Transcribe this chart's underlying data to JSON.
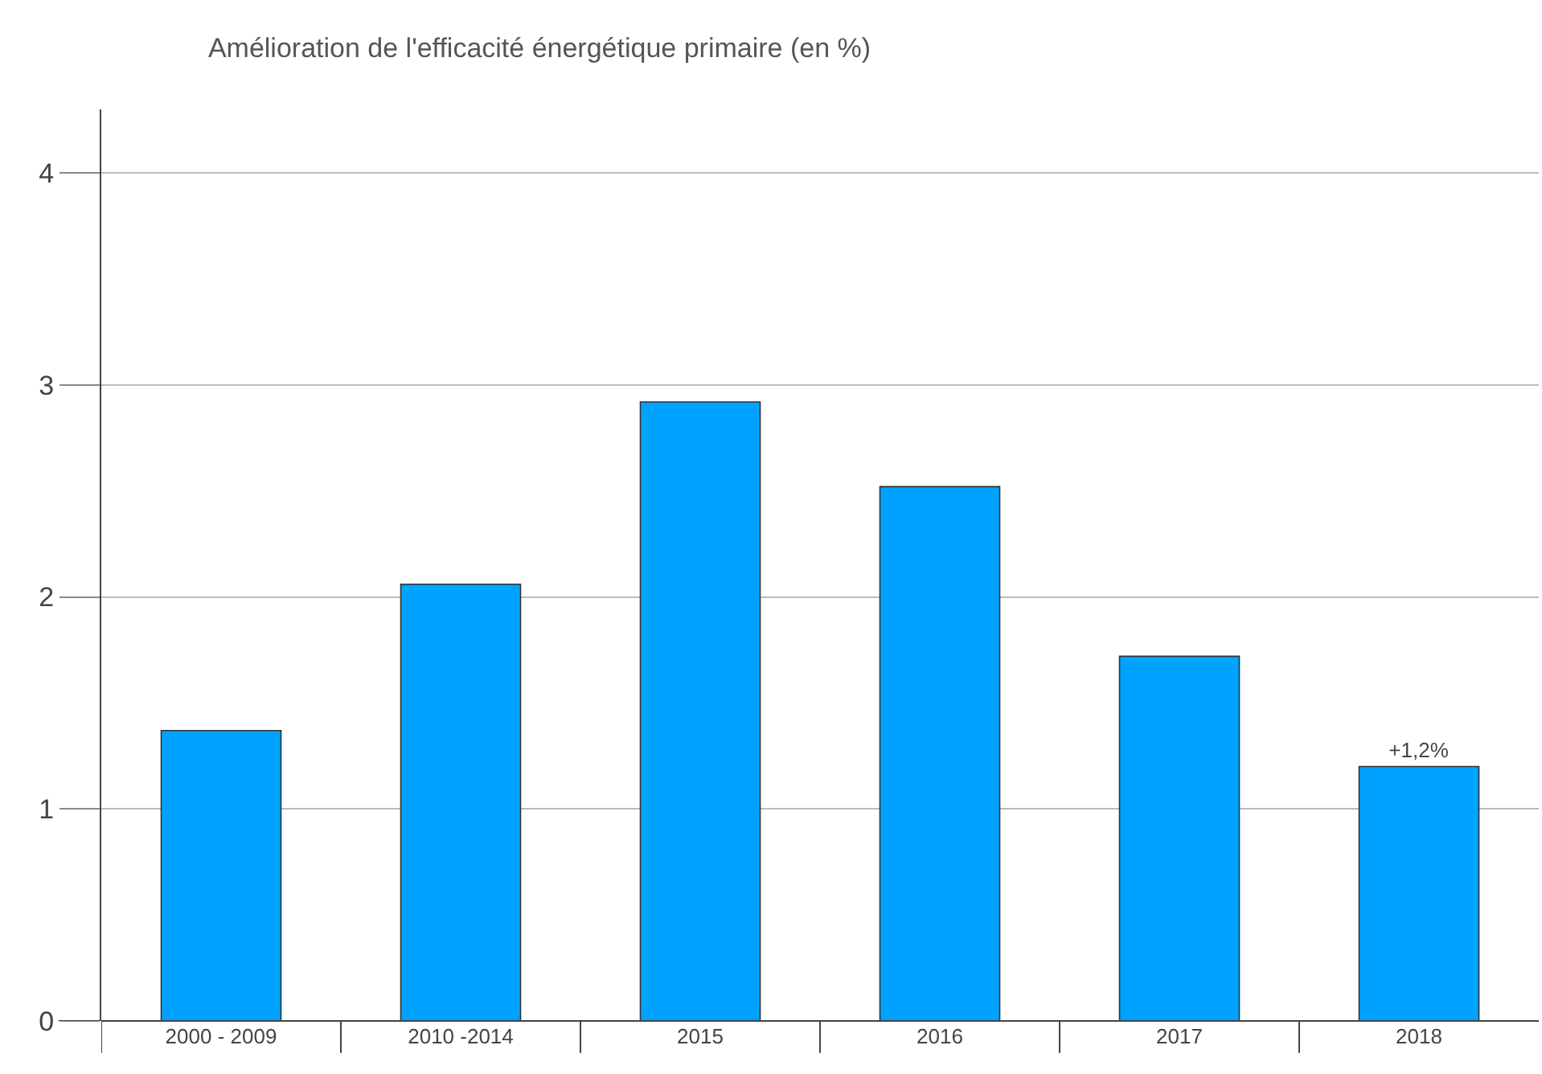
{
  "chart_data": {
    "type": "bar",
    "title": "Amélioration de l'efficacité énergétique primaire (en %)",
    "categories": [
      "2000 - 2009",
      "2010 -2014",
      "2015",
      "2016",
      "2017",
      "2018"
    ],
    "values": [
      1.37,
      2.06,
      2.92,
      2.52,
      1.72,
      1.2
    ],
    "value_labels": [
      null,
      null,
      null,
      null,
      null,
      "+1,2%"
    ],
    "color": "#00a2ff",
    "ylim": [
      0,
      4.3
    ],
    "yticks": [
      0,
      1,
      2,
      3,
      4
    ],
    "grid": "y",
    "legend": false
  }
}
